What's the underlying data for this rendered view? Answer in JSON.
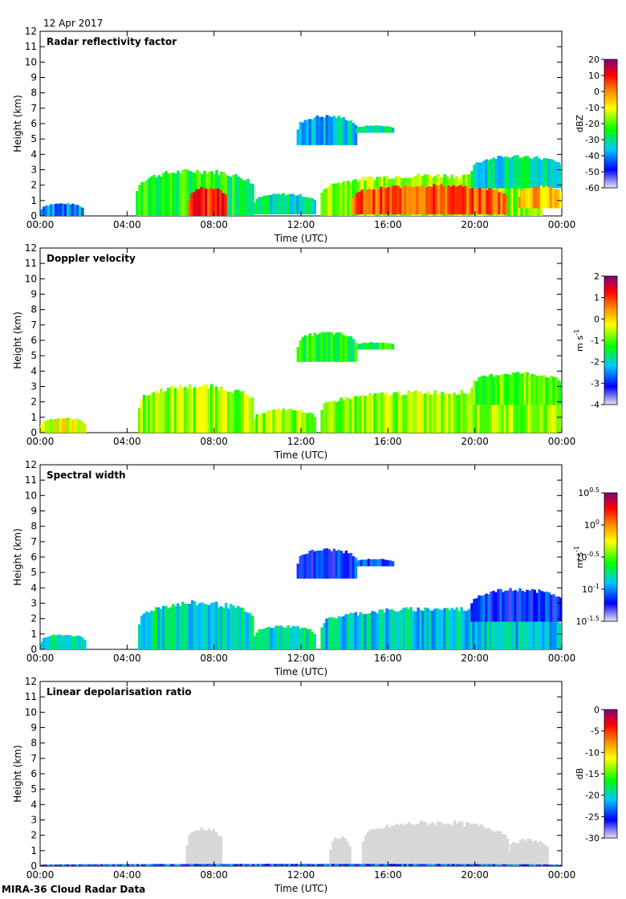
{
  "figure": {
    "date": "12 Apr 2017",
    "footer": "MIRA-36 Cloud Radar Data"
  },
  "colormaps": {
    "jet": [
      "#e6e6f2",
      "#0000ff",
      "#00c8ff",
      "#00ff00",
      "#ffff00",
      "#ff8c00",
      "#ff0000",
      "#7f007f"
    ],
    "ldr_cloud": "#d8d8d8"
  },
  "chart_data": [
    {
      "type": "heatmap",
      "title": "Radar reflectivity factor",
      "xlabel": "Time (UTC)",
      "ylabel": "Height (km)",
      "xticks": [
        "00:00",
        "04:00",
        "08:00",
        "12:00",
        "16:00",
        "20:00",
        "00:00"
      ],
      "xlim_hours": [
        0,
        24
      ],
      "ylim": [
        0,
        12
      ],
      "yticks": [
        "0",
        "1",
        "2",
        "3",
        "4",
        "5",
        "6",
        "7",
        "8",
        "9",
        "10",
        "11",
        "12"
      ],
      "colorbar": {
        "label": "dBZ",
        "ticks": [
          "20",
          "10",
          "0",
          "-10",
          "-20",
          "-30",
          "-40",
          "-50",
          "-60"
        ],
        "range": [
          -60,
          20
        ]
      },
      "features": [
        {
          "t": [
            0.0,
            1.9
          ],
          "h": [
            0.0,
            0.85
          ],
          "level": 0.25
        },
        {
          "t": [
            4.4,
            9.8
          ],
          "h": [
            0.0,
            3.1
          ],
          "level": 0.45
        },
        {
          "t": [
            6.8,
            8.5
          ],
          "h": [
            0.0,
            2.0
          ],
          "level": 0.85
        },
        {
          "t": [
            9.8,
            12.6
          ],
          "h": [
            0.1,
            1.5
          ],
          "level": 0.35
        },
        {
          "t": [
            11.8,
            14.5
          ],
          "h": [
            4.6,
            6.6
          ],
          "level": 0.3
        },
        {
          "t": [
            14.5,
            16.2
          ],
          "h": [
            5.4,
            5.9
          ],
          "level": 0.35
        },
        {
          "t": [
            12.9,
            23.0
          ],
          "h": [
            0.0,
            2.8
          ],
          "level": 0.55
        },
        {
          "t": [
            14.3,
            21.5
          ],
          "h": [
            0.1,
            2.1
          ],
          "level": 0.8
        },
        {
          "t": [
            19.8,
            24.0
          ],
          "h": [
            1.8,
            4.0
          ],
          "level": 0.35
        },
        {
          "t": [
            22.0,
            24.0
          ],
          "h": [
            0.5,
            2.0
          ],
          "level": 0.7
        }
      ]
    },
    {
      "type": "heatmap",
      "title": "Doppler velocity",
      "xlabel": "Time (UTC)",
      "ylabel": "Height (km)",
      "xticks": [
        "00:00",
        "04:00",
        "08:00",
        "12:00",
        "16:00",
        "20:00",
        "00:00"
      ],
      "xlim_hours": [
        0,
        24
      ],
      "ylim": [
        0,
        12
      ],
      "yticks": [
        "0",
        "1",
        "2",
        "3",
        "4",
        "5",
        "6",
        "7",
        "8",
        "9",
        "10",
        "11",
        "12"
      ],
      "colorbar": {
        "label": "m s-1",
        "ticks": [
          "2",
          "1",
          "0",
          "-1",
          "-2",
          "-3",
          "-4"
        ],
        "range": [
          -4,
          2
        ]
      },
      "features": [
        {
          "t": [
            0.0,
            2.0
          ],
          "h": [
            0.0,
            1.0
          ],
          "level": 0.6
        },
        {
          "t": [
            4.5,
            9.8
          ],
          "h": [
            0.0,
            3.2
          ],
          "level": 0.55
        },
        {
          "t": [
            9.8,
            12.6
          ],
          "h": [
            0.0,
            1.6
          ],
          "level": 0.55
        },
        {
          "t": [
            11.8,
            14.5
          ],
          "h": [
            4.6,
            6.6
          ],
          "level": 0.45
        },
        {
          "t": [
            14.5,
            16.2
          ],
          "h": [
            5.4,
            5.9
          ],
          "level": 0.45
        },
        {
          "t": [
            12.9,
            24.0
          ],
          "h": [
            0.0,
            2.8
          ],
          "level": 0.55
        },
        {
          "t": [
            19.8,
            24.0
          ],
          "h": [
            1.8,
            4.0
          ],
          "level": 0.5
        }
      ]
    },
    {
      "type": "heatmap",
      "title": "Spectral width",
      "xlabel": "Time (UTC)",
      "ylabel": "Height (km)",
      "xticks": [
        "00:00",
        "04:00",
        "08:00",
        "12:00",
        "16:00",
        "20:00",
        "00:00"
      ],
      "xlim_hours": [
        0,
        24
      ],
      "ylim": [
        0,
        12
      ],
      "yticks": [
        "0",
        "1",
        "2",
        "3",
        "4",
        "5",
        "6",
        "7",
        "8",
        "9",
        "10",
        "11",
        "12"
      ],
      "colorbar": {
        "label": "m s-1",
        "ticks": [
          "10^0.5",
          "10^0",
          "10^-0.5",
          "10^-1",
          "10^-1.5"
        ],
        "range_log10": [
          -1.5,
          0.5
        ]
      },
      "features": [
        {
          "t": [
            0.0,
            2.0
          ],
          "h": [
            0.0,
            1.0
          ],
          "level": 0.35
        },
        {
          "t": [
            4.5,
            9.8
          ],
          "h": [
            0.0,
            3.2
          ],
          "level": 0.35
        },
        {
          "t": [
            9.8,
            12.6
          ],
          "h": [
            0.0,
            1.6
          ],
          "level": 0.35
        },
        {
          "t": [
            11.8,
            14.5
          ],
          "h": [
            4.6,
            6.6
          ],
          "level": 0.18
        },
        {
          "t": [
            14.5,
            16.2
          ],
          "h": [
            5.4,
            5.9
          ],
          "level": 0.18
        },
        {
          "t": [
            12.9,
            24.0
          ],
          "h": [
            0.0,
            2.8
          ],
          "level": 0.32
        },
        {
          "t": [
            19.8,
            24.0
          ],
          "h": [
            1.8,
            4.0
          ],
          "level": 0.18
        }
      ]
    },
    {
      "type": "heatmap",
      "title": "Linear depolarisation ratio",
      "xlabel": "Time (UTC)",
      "ylabel": "Height (km)",
      "xticks": [
        "00:00",
        "04:00",
        "08:00",
        "12:00",
        "16:00",
        "20:00",
        "00:00"
      ],
      "xlim_hours": [
        0,
        24
      ],
      "ylim": [
        0,
        12
      ],
      "yticks": [
        "0",
        "1",
        "2",
        "3",
        "4",
        "5",
        "6",
        "7",
        "8",
        "9",
        "10",
        "11",
        "12"
      ],
      "colorbar": {
        "label": "dB",
        "ticks": [
          "0",
          "-5",
          "-10",
          "-15",
          "-20",
          "-25",
          "-30"
        ],
        "range": [
          -30,
          0
        ]
      },
      "features": [
        {
          "t": [
            6.7,
            8.3
          ],
          "h": [
            0.0,
            2.6
          ],
          "level": -1
        },
        {
          "t": [
            13.3,
            14.2
          ],
          "h": [
            0.0,
            2.0
          ],
          "level": -1
        },
        {
          "t": [
            14.8,
            21.5
          ],
          "h": [
            0.0,
            3.0
          ],
          "level": -1
        },
        {
          "t": [
            21.5,
            23.3
          ],
          "h": [
            0.0,
            1.8
          ],
          "level": -1
        },
        {
          "t": [
            0.0,
            24.0
          ],
          "h": [
            0.0,
            0.15
          ],
          "level": 0.2
        }
      ]
    }
  ]
}
